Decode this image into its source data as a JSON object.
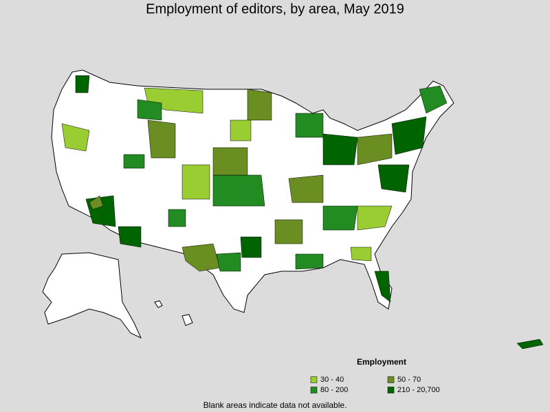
{
  "title": "Employment of editors, by area, May 2019",
  "legend": {
    "title": "Employment",
    "items": [
      {
        "label": "30 - 40",
        "color": "#9acd32"
      },
      {
        "label": "50 - 70",
        "color": "#6b8e23"
      },
      {
        "label": "80 - 200",
        "color": "#228b22"
      },
      {
        "label": "210 - 20,700",
        "color": "#006400"
      }
    ]
  },
  "footnote": "Blank areas indicate data not available."
}
